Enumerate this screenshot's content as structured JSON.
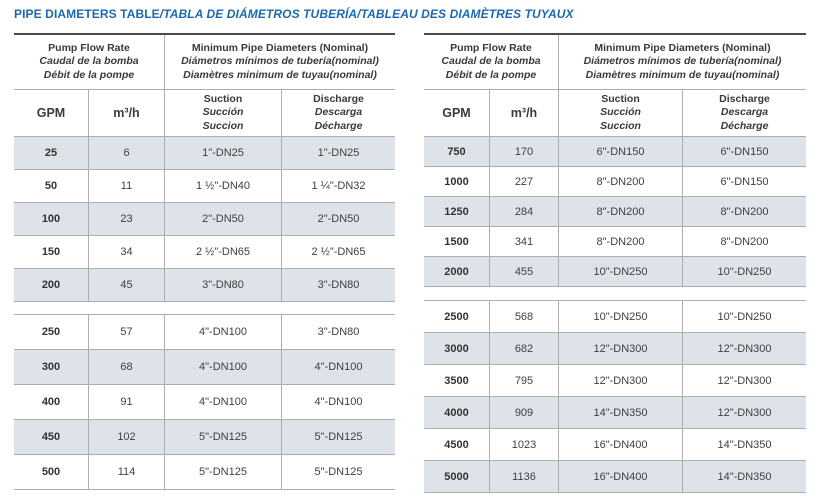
{
  "title": {
    "main": "PIPE DIAMETERS TABLE",
    "translations": "/TABLA DE DIÁMETROS TUBERÍA/TABLEAU DES DIAMÈTRES TUYAUX"
  },
  "colors": {
    "title_blue": "#1b69b1",
    "row_shade": "#dde3e9",
    "border_gray": "#a9aeb2",
    "border_dark": "#4a4a4a",
    "text": "#3a3a3a"
  },
  "header": {
    "flow_group": [
      "Pump Flow Rate",
      "Caudal de la bomba",
      "Débit de la pompe"
    ],
    "diameter_group": [
      "Minimum Pipe Diameters (Nominal)",
      "Diámetros mínimos de tubería(nominal)",
      "Diamètres minimum de tuyau(nominal)"
    ],
    "gpm": "GPM",
    "m3h": "m³/h",
    "suction": [
      "Suction",
      "Succión",
      "Succion"
    ],
    "discharge": [
      "Discharge",
      "Descarga",
      "Décharge"
    ]
  },
  "tables": [
    {
      "sections": [
        {
          "first_shaded": true,
          "rows": [
            [
              "25",
              "6",
              "1\"-DN25",
              "1\"-DN25"
            ],
            [
              "50",
              "11",
              "1 ½\"-DN40",
              "1 ¼\"-DN32"
            ],
            [
              "100",
              "23",
              "2\"-DN50",
              "2\"-DN50"
            ],
            [
              "150",
              "34",
              "2 ½\"-DN65",
              "2 ½\"-DN65"
            ],
            [
              "200",
              "45",
              "3\"-DN80",
              "3\"-DN80"
            ]
          ]
        },
        {
          "first_shaded": false,
          "rows": [
            [
              "250",
              "57",
              "4\"-DN100",
              "3\"-DN80"
            ],
            [
              "300",
              "68",
              "4\"-DN100",
              "4\"-DN100"
            ],
            [
              "400",
              "91",
              "4\"-DN100",
              "4\"-DN100"
            ],
            [
              "450",
              "102",
              "5\"-DN125",
              "5\"-DN125"
            ],
            [
              "500",
              "114",
              "5\"-DN125",
              "5\"-DN125"
            ]
          ]
        }
      ]
    },
    {
      "sections": [
        {
          "first_shaded": true,
          "rows": [
            [
              "750",
              "170",
              "6\"-DN150",
              "6\"-DN150"
            ],
            [
              "1000",
              "227",
              "8\"-DN200",
              "6\"-DN150"
            ],
            [
              "1250",
              "284",
              "8\"-DN200",
              "8\"-DN200"
            ],
            [
              "1500",
              "341",
              "8\"-DN200",
              "8\"-DN200"
            ],
            [
              "2000",
              "455",
              "10\"-DN250",
              "10\"-DN250"
            ]
          ]
        },
        {
          "first_shaded": false,
          "rows": [
            [
              "2500",
              "568",
              "10\"-DN250",
              "10\"-DN250"
            ],
            [
              "3000",
              "682",
              "12\"-DN300",
              "12\"-DN300"
            ],
            [
              "3500",
              "795",
              "12\"-DN300",
              "12\"-DN300"
            ],
            [
              "4000",
              "909",
              "14\"-DN350",
              "12\"-DN300"
            ],
            [
              "4500",
              "1023",
              "16\"-DN400",
              "14\"-DN350"
            ],
            [
              "5000",
              "1136",
              "16\"-DN400",
              "14\"-DN350"
            ]
          ]
        }
      ]
    }
  ]
}
